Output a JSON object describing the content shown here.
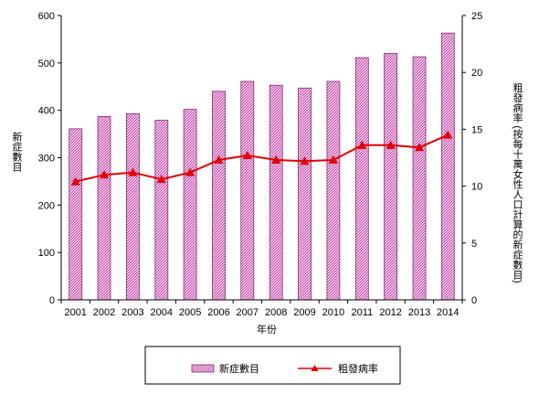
{
  "chart_data": {
    "type": "bar",
    "categories": [
      "2001",
      "2002",
      "2003",
      "2004",
      "2005",
      "2006",
      "2007",
      "2008",
      "2009",
      "2010",
      "2011",
      "2012",
      "2013",
      "2014"
    ],
    "series": [
      {
        "name": "新症數目",
        "type": "bar",
        "axis": "left",
        "values": [
          361,
          387,
          393,
          379,
          402,
          440,
          461,
          453,
          447,
          461,
          511,
          520,
          513,
          563
        ]
      },
      {
        "name": "粗發病率",
        "type": "line",
        "axis": "right",
        "values": [
          10.4,
          11.0,
          11.2,
          10.6,
          11.2,
          12.3,
          12.7,
          12.3,
          12.2,
          12.3,
          13.6,
          13.6,
          13.4,
          14.5
        ]
      }
    ],
    "xlabel": "年份",
    "ylabel": "新症數目",
    "y2label": "粗發病率 (按每十萬女性人口計算的新症數目)",
    "ylim": [
      0,
      600
    ],
    "y2lim": [
      0,
      25
    ],
    "yticks": [
      "0",
      "100",
      "200",
      "300",
      "400",
      "500",
      "600"
    ],
    "y2ticks": [
      "0",
      "5",
      "10",
      "15",
      "20",
      "25"
    ],
    "grid": false,
    "legend": "bottom",
    "colors": {
      "bar_fill": "#f3c6ea",
      "bar_hatch": "#c0399a",
      "bar_edge": "#7a2f6a",
      "line": "#e00000",
      "axis": "#000000"
    }
  }
}
